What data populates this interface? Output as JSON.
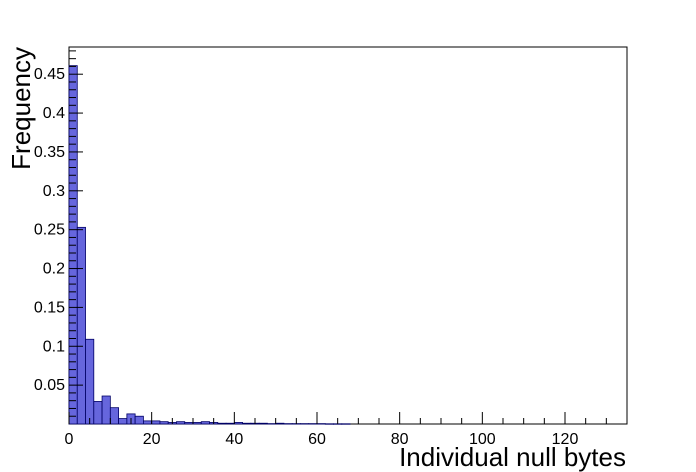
{
  "chart_data": {
    "type": "bar",
    "title": "",
    "xlabel": "Individual null bytes",
    "ylabel": "Frequency",
    "xlim": [
      0,
      135
    ],
    "ylim": [
      0,
      0.485
    ],
    "bin_width": 2,
    "x_ticks": [
      0,
      20,
      40,
      60,
      80,
      100,
      120
    ],
    "x_tick_labels": [
      "0",
      "20",
      "40",
      "60",
      "80",
      "100",
      "120"
    ],
    "y_ticks": [
      0.05,
      0.1,
      0.15,
      0.2,
      0.25,
      0.3,
      0.35,
      0.4,
      0.45
    ],
    "y_tick_labels": [
      "0.05",
      "0.1",
      "0.15",
      "0.2",
      "0.25",
      "0.3",
      "0.35",
      "0.4",
      "0.45"
    ],
    "grid": false,
    "bar_fill": "#6666dd",
    "bar_stroke": "#000066",
    "bin_starts": [
      0,
      2,
      4,
      6,
      8,
      10,
      12,
      14,
      16,
      18,
      20,
      22,
      24,
      26,
      28,
      30,
      32,
      34,
      36,
      38,
      40,
      42,
      44,
      46,
      48,
      50,
      52,
      54,
      56,
      58,
      60,
      62,
      64,
      66
    ],
    "values": [
      0.461,
      0.253,
      0.109,
      0.029,
      0.036,
      0.021,
      0.007,
      0.013,
      0.01,
      0.004,
      0.004,
      0.003,
      0.002,
      0.003,
      0.002,
      0.002,
      0.003,
      0.002,
      0.001,
      0.001,
      0.002,
      0.001,
      0.001,
      0.001,
      0.0005,
      0.001,
      0.0005,
      0.0005,
      0.0005,
      0.0005,
      0.0005,
      0.0003,
      0.0003,
      0.0003
    ]
  }
}
